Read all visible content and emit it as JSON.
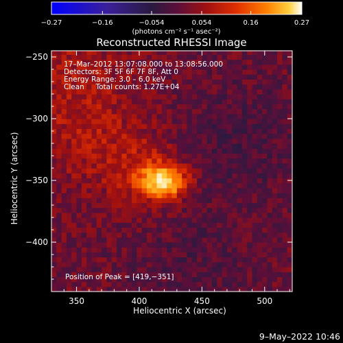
{
  "chart_data": {
    "type": "heatmap",
    "title": "Reconstructed RHESSI Image",
    "xlabel": "Heliocentric X (arcsec)",
    "ylabel": "Heliocentric Y (arcsec)",
    "xlim": [
      330,
      522
    ],
    "ylim": [
      -440,
      -245
    ],
    "x_ticks": [
      350,
      400,
      450,
      500
    ],
    "y_ticks": [
      -250,
      -300,
      -350,
      -400
    ],
    "x_tick_labels": [
      "350",
      "400",
      "450",
      "500"
    ],
    "y_tick_labels": [
      "−250",
      "−300",
      "−350",
      "−400"
    ],
    "colorbar": {
      "range": [
        -0.27,
        0.27
      ],
      "tick_labels": [
        "−0.27",
        "−0.16",
        "−0.054",
        "0.054",
        "0.16",
        "0.27"
      ],
      "unit": "(photons cm⁻² s⁻¹ asec⁻²)"
    },
    "peak": {
      "x": 419,
      "y": -351
    },
    "colormap": [
      "#0000ff",
      "#3a1f9a",
      "#2a1a40",
      "#5a0f3a",
      "#a01010",
      "#e03000",
      "#ff8000",
      "#ffd040",
      "#ffffff"
    ]
  },
  "annotations": {
    "line1": "17–Mar–2012 13:07:08.000 to 13:08:56.000",
    "line2": "Detectors: 3F 5F 6F 7F 8F, Att 0",
    "line3": "Energy Range: 3.0 – 6.0 keV",
    "line4": "Clean     Total counts: 1.27E+04",
    "peak_label": "Position of Peak = [419,−351]"
  },
  "footer": {
    "date": "9–May–2022 10:46"
  }
}
